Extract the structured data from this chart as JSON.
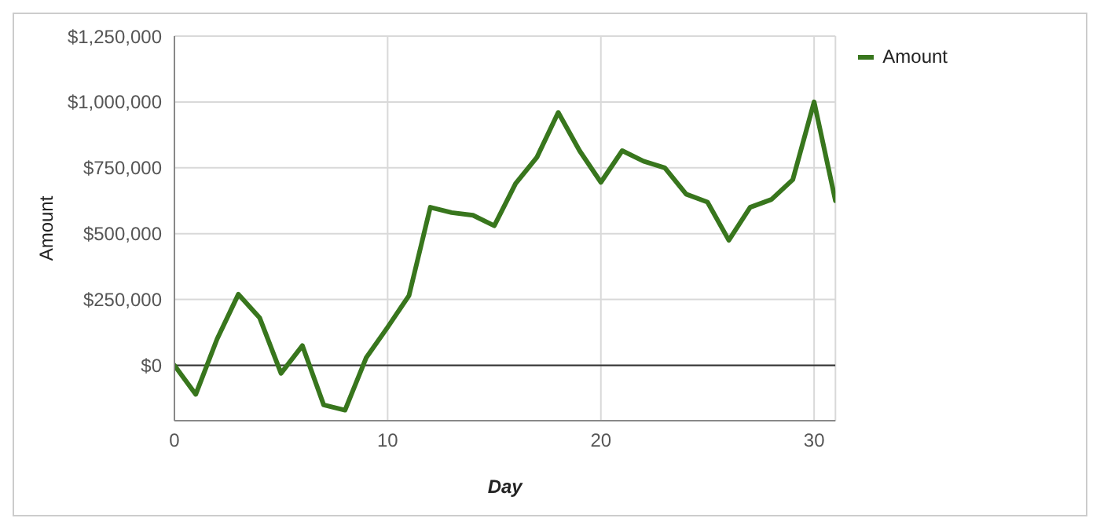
{
  "chart_data": {
    "type": "line",
    "xlabel": "Day",
    "ylabel": "Amount",
    "x": [
      0,
      1,
      2,
      3,
      4,
      5,
      6,
      7,
      8,
      9,
      10,
      11,
      12,
      13,
      14,
      15,
      16,
      17,
      18,
      19,
      20,
      21,
      22,
      23,
      24,
      25,
      26,
      27,
      28,
      29,
      30,
      31
    ],
    "series": [
      {
        "name": "Amount",
        "color": "#38761d",
        "values": [
          0,
          -110000,
          100000,
          270000,
          180000,
          -30000,
          75000,
          -150000,
          -170000,
          30000,
          145000,
          265000,
          600000,
          580000,
          570000,
          530000,
          690000,
          790000,
          960000,
          815000,
          695000,
          815000,
          775000,
          750000,
          650000,
          620000,
          475000,
          600000,
          630000,
          705000,
          1000000,
          625000
        ]
      }
    ],
    "xlim": [
      0,
      31
    ],
    "xticks": [
      0,
      10,
      20,
      30
    ],
    "ylim": [
      -210000,
      1250000
    ],
    "yticks": [
      {
        "value": 0,
        "label": "$0"
      },
      {
        "value": 250000,
        "label": "$250,000"
      },
      {
        "value": 500000,
        "label": "$500,000"
      },
      {
        "value": 750000,
        "label": "$750,000"
      },
      {
        "value": 1000000,
        "label": "$1,000,000"
      },
      {
        "value": 1250000,
        "label": "$1,250,000"
      }
    ],
    "ref_lines": [
      {
        "axis": "y",
        "value": 0,
        "color": "#333333"
      }
    ],
    "grid": true,
    "legend": "top right",
    "marker": "none",
    "line_style": "solid"
  }
}
